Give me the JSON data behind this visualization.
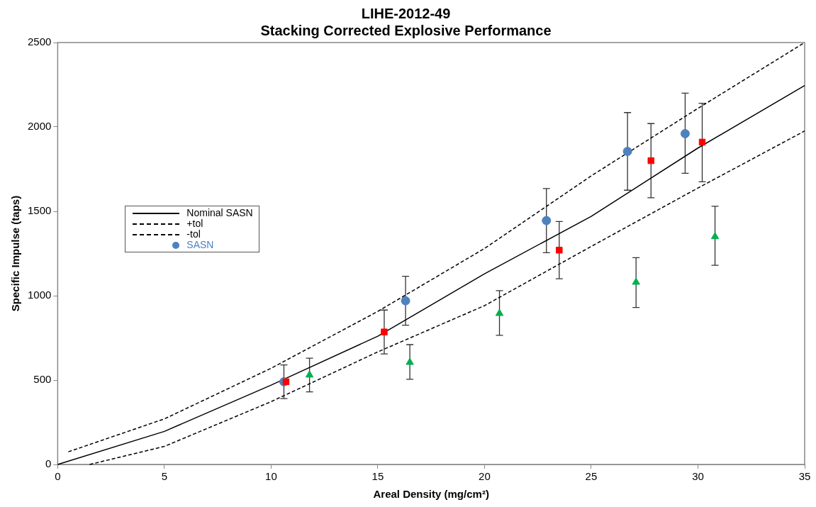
{
  "chart_data": {
    "type": "scatter",
    "title": "LIHE-2012-49",
    "subtitle": "Stacking Corrected Explosive Performance",
    "xlabel": "Areal Density (mg/cm²)",
    "ylabel": "Specific Impulse (taps)",
    "xlim": [
      0,
      35
    ],
    "xticks": [
      0,
      5,
      10,
      15,
      20,
      25,
      30,
      35
    ],
    "ylim": [
      0,
      2500
    ],
    "yticks": [
      0,
      500,
      1000,
      1500,
      2000,
      2500
    ],
    "grid": false,
    "legend": "left",
    "series": [
      {
        "name": "Nominal SASN",
        "type": "line",
        "line_style": "solid",
        "marker": "none",
        "color": "#000000",
        "x": [
          0,
          5,
          10,
          15,
          20,
          25,
          30,
          35
        ],
        "values": [
          0,
          196,
          470,
          760,
          1130,
          1470,
          1875,
          2245
        ]
      },
      {
        "name": "+tol",
        "type": "line",
        "line_style": "dashed",
        "marker": "none",
        "color": "#000000",
        "x": [
          0.5,
          5,
          10,
          15,
          20,
          25,
          30,
          35
        ],
        "values": [
          75,
          270,
          570,
          907,
          1280,
          1710,
          2110,
          2500
        ]
      },
      {
        "name": "-tol",
        "type": "line",
        "line_style": "dashed",
        "marker": "none",
        "color": "#000000",
        "x": [
          1.5,
          5,
          10,
          15,
          20,
          25,
          30,
          35
        ],
        "values": [
          0,
          107,
          372,
          667,
          941,
          1292,
          1638,
          1976
        ]
      },
      {
        "name": "SASN",
        "marker": "circle",
        "color": "#4f81bd",
        "x": [
          10.6,
          16.3,
          22.9,
          26.7,
          29.4
        ],
        "values": [
          490,
          970,
          1445,
          1855,
          1960
        ],
        "errors": [
          [
            390,
            590
          ],
          [
            825,
            1115
          ],
          [
            1255,
            1635
          ],
          [
            1625,
            2085
          ],
          [
            1725,
            2200
          ]
        ]
      },
      {
        "marker": "square",
        "color": "#ff0000",
        "x": [
          10.7,
          15.3,
          23.5,
          27.8,
          30.2
        ],
        "values": [
          490,
          785,
          1270,
          1800,
          1910
        ],
        "errors": [
          null,
          [
            655,
            915
          ],
          [
            1100,
            1440
          ],
          [
            1580,
            2020
          ],
          [
            1675,
            2140
          ]
        ]
      },
      {
        "marker": "triangle",
        "color": "#00b050",
        "x": [
          11.8,
          16.5,
          20.7,
          27.1,
          30.8
        ],
        "values": [
          530,
          605,
          895,
          1080,
          1350
        ],
        "errors": [
          [
            430,
            630
          ],
          [
            505,
            710
          ],
          [
            765,
            1030
          ],
          [
            930,
            1225
          ],
          [
            1180,
            1530
          ]
        ]
      }
    ]
  }
}
